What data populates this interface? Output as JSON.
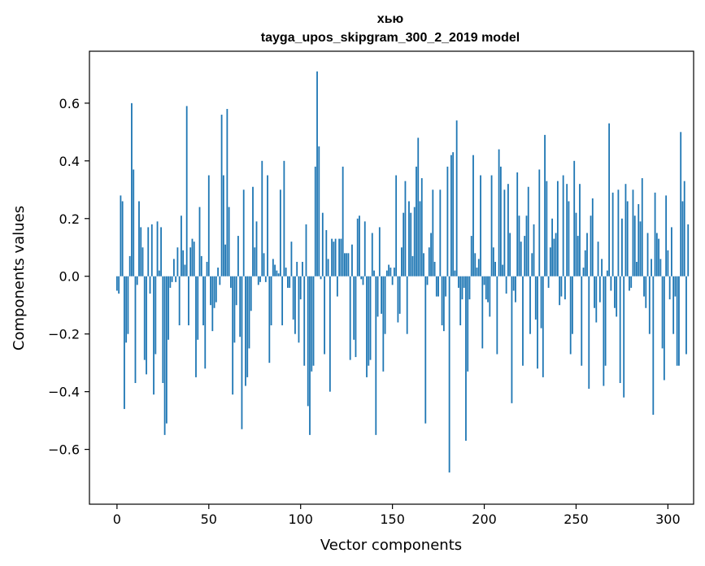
{
  "chart_data": {
    "type": "bar",
    "title": "хью",
    "subtitle": "tayga_upos_skipgram_300_2_2019 model",
    "xlabel": "Vector components",
    "ylabel": "Components values",
    "xlim": [
      -15,
      314
    ],
    "ylim": [
      -0.79,
      0.78
    ],
    "xticks": [
      0,
      50,
      100,
      150,
      200,
      250,
      300
    ],
    "yticks": [
      -0.6,
      -0.4,
      -0.2,
      0.0,
      0.2,
      0.4,
      0.6
    ],
    "xtick_labels": [
      "0",
      "50",
      "100",
      "150",
      "200",
      "250",
      "300"
    ],
    "ytick_labels": [
      "−0.6",
      "−0.4",
      "−0.2",
      "0.0",
      "0.2",
      "0.4",
      "0.6"
    ],
    "color": "#1f77b4",
    "values": [
      -0.05,
      -0.06,
      0.28,
      0.26,
      -0.46,
      -0.23,
      -0.2,
      0.07,
      0.6,
      0.37,
      -0.37,
      -0.03,
      0.26,
      0.17,
      0.1,
      -0.29,
      -0.34,
      0.17,
      -0.06,
      0.18,
      -0.41,
      -0.27,
      0.19,
      0.02,
      0.17,
      -0.37,
      -0.55,
      -0.51,
      -0.22,
      -0.04,
      -0.02,
      0.06,
      -0.02,
      0.1,
      -0.17,
      0.21,
      0.09,
      0.04,
      0.59,
      -0.17,
      0.1,
      0.13,
      0.12,
      -0.35,
      -0.22,
      0.24,
      0.07,
      -0.17,
      -0.32,
      0.05,
      0.35,
      -0.1,
      -0.19,
      -0.11,
      -0.09,
      0.03,
      -0.03,
      0.56,
      0.35,
      0.11,
      0.58,
      0.24,
      -0.04,
      -0.41,
      -0.23,
      -0.1,
      0.14,
      -0.21,
      -0.53,
      0.3,
      -0.38,
      -0.35,
      -0.25,
      -0.12,
      0.31,
      0.1,
      0.19,
      -0.03,
      -0.02,
      0.4,
      0.08,
      -0.02,
      0.35,
      -0.3,
      -0.17,
      0.06,
      0.04,
      0.02,
      0.01,
      0.3,
      -0.17,
      0.4,
      0.03,
      -0.04,
      -0.04,
      0.12,
      -0.15,
      -0.2,
      0.05,
      -0.23,
      -0.08,
      0.05,
      -0.31,
      0.18,
      -0.45,
      -0.55,
      -0.33,
      -0.31,
      0.38,
      0.71,
      0.45,
      -0.01,
      0.22,
      -0.27,
      0.16,
      0.06,
      -0.4,
      0.13,
      0.12,
      0.13,
      -0.07,
      0.13,
      0.13,
      0.38,
      0.08,
      0.08,
      0.08,
      -0.29,
      0.11,
      -0.22,
      -0.28,
      0.2,
      0.21,
      -0.01,
      -0.03,
      0.19,
      -0.35,
      -0.31,
      -0.29,
      0.15,
      0.02,
      -0.55,
      -0.14,
      0.17,
      -0.13,
      -0.33,
      -0.2,
      0.02,
      0.04,
      0.03,
      -0.03,
      0.03,
      0.35,
      -0.16,
      -0.13,
      0.1,
      0.22,
      0.33,
      -0.2,
      0.26,
      0.22,
      0.07,
      0.24,
      0.38,
      0.48,
      0.26,
      0.34,
      0.08,
      -0.51,
      -0.03,
      0.1,
      0.15,
      0.3,
      0.05,
      -0.07,
      -0.07,
      0.3,
      -0.17,
      -0.19,
      -0.07,
      0.38,
      -0.68,
      0.42,
      0.43,
      0.02,
      0.54,
      -0.04,
      -0.17,
      -0.08,
      -0.04,
      -0.57,
      -0.33,
      -0.08,
      0.14,
      0.42,
      0.08,
      0.03,
      0.06,
      0.35,
      -0.25,
      -0.03,
      -0.08,
      -0.09,
      -0.14,
      0.35,
      0.1,
      0.05,
      -0.27,
      0.44,
      0.38,
      0.04,
      0.3,
      -0.06,
      0.32,
      0.15,
      -0.44,
      -0.05,
      -0.09,
      0.36,
      0.21,
      0.12,
      -0.31,
      0.14,
      0.21,
      0.31,
      -0.2,
      0.08,
      0.18,
      -0.15,
      -0.32,
      0.37,
      -0.18,
      -0.35,
      0.49,
      0.33,
      -0.04,
      0.1,
      0.2,
      0.13,
      0.15,
      0.33,
      -0.1,
      -0.07,
      0.35,
      -0.08,
      0.32,
      0.26,
      -0.27,
      -0.2,
      0.4,
      0.22,
      0.14,
      0.32,
      -0.31,
      0.03,
      0.09,
      0.15,
      -0.39,
      0.21,
      0.27,
      -0.11,
      -0.16,
      0.12,
      -0.09,
      0.06,
      -0.38,
      -0.31,
      0.02,
      0.53,
      -0.05,
      0.29,
      -0.11,
      -0.14,
      0.3,
      -0.37,
      0.2,
      -0.42,
      0.32,
      0.26,
      -0.05,
      -0.04,
      0.3,
      0.21,
      0.05,
      0.25,
      0.19,
      0.34,
      -0.07,
      -0.11,
      0.15,
      -0.2,
      0.06,
      -0.48,
      0.29,
      0.15,
      0.13,
      0.06,
      -0.25,
      -0.36,
      0.28,
      0.09,
      -0.08,
      0.17,
      -0.2,
      -0.07,
      -0.31,
      -0.31,
      0.5,
      0.26,
      0.33,
      -0.27,
      0.18
    ]
  }
}
